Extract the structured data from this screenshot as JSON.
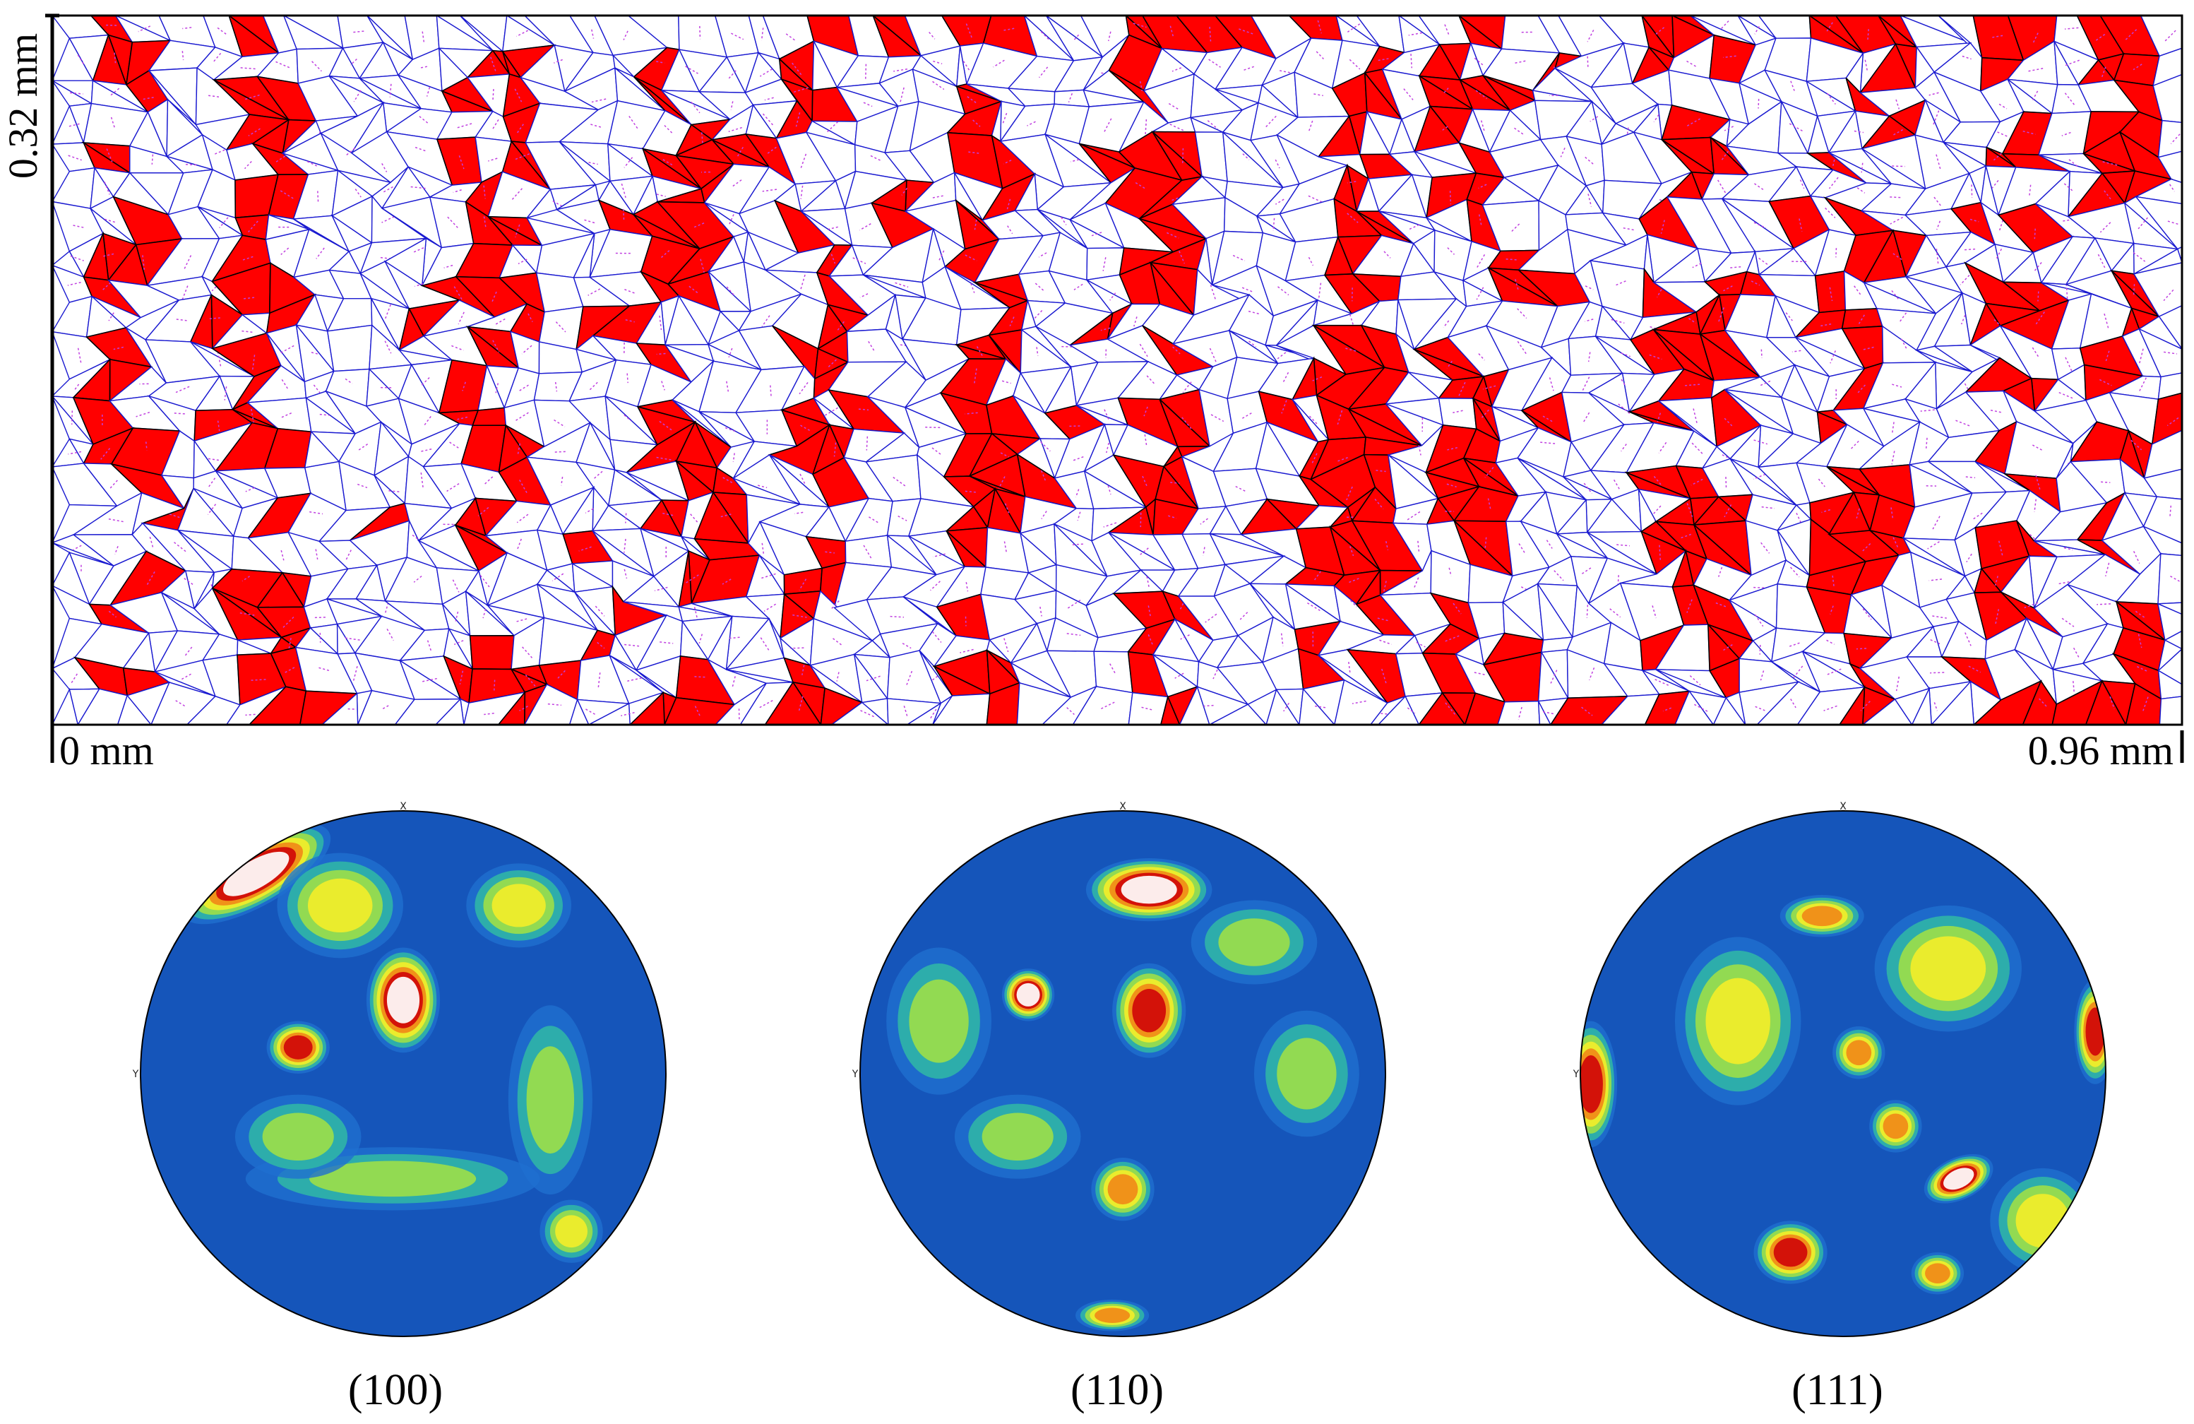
{
  "micrograph": {
    "y_scale_label": "0.32 mm",
    "x_start_label": "0 mm",
    "x_end_label": "0.96 mm",
    "colors": {
      "highlight_grain": "#ff0000",
      "grain_boundary": "#1a1ad0",
      "marker": "#c040e0",
      "background": "#ffffff"
    }
  },
  "pole_figures": [
    {
      "label": "(100)",
      "axis_top": "X",
      "axis_left": "Y",
      "blobs": [
        {
          "u": 0.22,
          "v": 0.12,
          "rx": 0.16,
          "ry": 0.06,
          "rot": -30,
          "level": 6
        },
        {
          "u": 0.5,
          "v": 0.36,
          "rx": 0.07,
          "ry": 0.1,
          "rot": 0,
          "level": 6
        },
        {
          "u": 0.3,
          "v": 0.45,
          "rx": 0.06,
          "ry": 0.05,
          "rot": 0,
          "level": 5
        },
        {
          "u": 0.38,
          "v": 0.18,
          "rx": 0.12,
          "ry": 0.1,
          "rot": 0,
          "level": 3
        },
        {
          "u": 0.72,
          "v": 0.18,
          "rx": 0.1,
          "ry": 0.08,
          "rot": 0,
          "level": 3
        },
        {
          "u": 0.78,
          "v": 0.55,
          "rx": 0.08,
          "ry": 0.18,
          "rot": 0,
          "level": 2
        },
        {
          "u": 0.82,
          "v": 0.8,
          "rx": 0.06,
          "ry": 0.06,
          "rot": 0,
          "level": 3
        },
        {
          "u": 0.48,
          "v": 0.7,
          "rx": 0.28,
          "ry": 0.06,
          "rot": 0,
          "level": 2
        },
        {
          "u": 0.3,
          "v": 0.62,
          "rx": 0.12,
          "ry": 0.08,
          "rot": 0,
          "level": 2
        }
      ]
    },
    {
      "label": "(110)",
      "axis_top": "X",
      "axis_left": "Y",
      "blobs": [
        {
          "u": 0.55,
          "v": 0.15,
          "rx": 0.12,
          "ry": 0.06,
          "rot": 0,
          "level": 6
        },
        {
          "u": 0.55,
          "v": 0.38,
          "rx": 0.07,
          "ry": 0.09,
          "rot": 0,
          "level": 5
        },
        {
          "u": 0.32,
          "v": 0.35,
          "rx": 0.05,
          "ry": 0.05,
          "rot": 0,
          "level": 6
        },
        {
          "u": 0.5,
          "v": 0.72,
          "rx": 0.06,
          "ry": 0.06,
          "rot": 0,
          "level": 4
        },
        {
          "u": 0.48,
          "v": 0.96,
          "rx": 0.07,
          "ry": 0.03,
          "rot": 0,
          "level": 4
        },
        {
          "u": 0.15,
          "v": 0.4,
          "rx": 0.1,
          "ry": 0.14,
          "rot": 0,
          "level": 2
        },
        {
          "u": 0.85,
          "v": 0.5,
          "rx": 0.1,
          "ry": 0.12,
          "rot": 0,
          "level": 2
        },
        {
          "u": 0.75,
          "v": 0.25,
          "rx": 0.12,
          "ry": 0.08,
          "rot": 0,
          "level": 2
        },
        {
          "u": 0.3,
          "v": 0.62,
          "rx": 0.12,
          "ry": 0.08,
          "rot": 0,
          "level": 2
        }
      ]
    },
    {
      "label": "(111)",
      "axis_top": "X",
      "axis_left": "Y",
      "blobs": [
        {
          "u": 0.02,
          "v": 0.52,
          "rx": 0.05,
          "ry": 0.12,
          "rot": 0,
          "level": 5
        },
        {
          "u": 0.98,
          "v": 0.42,
          "rx": 0.04,
          "ry": 0.1,
          "rot": 0,
          "level": 5
        },
        {
          "u": 0.72,
          "v": 0.7,
          "rx": 0.07,
          "ry": 0.04,
          "rot": -25,
          "level": 6
        },
        {
          "u": 0.46,
          "v": 0.2,
          "rx": 0.08,
          "ry": 0.04,
          "rot": 0,
          "level": 4
        },
        {
          "u": 0.53,
          "v": 0.46,
          "rx": 0.05,
          "ry": 0.05,
          "rot": 0,
          "level": 4
        },
        {
          "u": 0.6,
          "v": 0.6,
          "rx": 0.05,
          "ry": 0.05,
          "rot": 0,
          "level": 4
        },
        {
          "u": 0.4,
          "v": 0.84,
          "rx": 0.07,
          "ry": 0.06,
          "rot": 0,
          "level": 5
        },
        {
          "u": 0.68,
          "v": 0.88,
          "rx": 0.05,
          "ry": 0.04,
          "rot": 0,
          "level": 4
        },
        {
          "u": 0.3,
          "v": 0.4,
          "rx": 0.12,
          "ry": 0.16,
          "rot": 0,
          "level": 3
        },
        {
          "u": 0.7,
          "v": 0.3,
          "rx": 0.14,
          "ry": 0.12,
          "rot": 0,
          "level": 3
        },
        {
          "u": 0.88,
          "v": 0.78,
          "rx": 0.1,
          "ry": 0.1,
          "rot": 0,
          "level": 3
        }
      ]
    }
  ]
}
